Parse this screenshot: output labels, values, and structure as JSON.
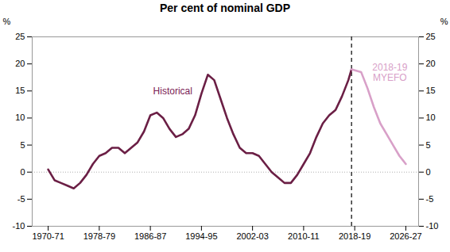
{
  "chart_data": {
    "type": "line",
    "title": "Per cent of nominal GDP",
    "ylabel": "%",
    "y2label": "%",
    "xlim": [
      1968.0,
      2028.5
    ],
    "xticks": [
      {
        "value": 1970.5,
        "label": "1970-71"
      },
      {
        "value": 1978.5,
        "label": "1978-79"
      },
      {
        "value": 1986.5,
        "label": "1986-87"
      },
      {
        "value": 1994.5,
        "label": "1994-95"
      },
      {
        "value": 2002.5,
        "label": "2002-03"
      },
      {
        "value": 2010.5,
        "label": "2010-11"
      },
      {
        "value": 2018.5,
        "label": "2018-19"
      },
      {
        "value": 2026.5,
        "label": "2026-27"
      }
    ],
    "ylim": [
      -10,
      25
    ],
    "yticks": [
      -10,
      -5,
      0,
      5,
      10,
      15,
      20,
      25
    ],
    "y2lim": [
      -10,
      25
    ],
    "y2ticks": [
      -10,
      -5,
      0,
      5,
      10,
      15,
      20,
      25
    ],
    "grid": false,
    "hlines": [
      0
    ],
    "vlines": [
      2018.0
    ],
    "series": [
      {
        "name": "Historical",
        "color": "#6B1F45",
        "label_x": 1990,
        "label_y": 15,
        "label_color": "#7B2255",
        "x": [
          1970.5,
          1971.5,
          1972.5,
          1973.5,
          1974.5,
          1975.5,
          1976.5,
          1977.5,
          1978.5,
          1979.5,
          1980.5,
          1981.5,
          1982.5,
          1983.5,
          1984.5,
          1985.5,
          1986.5,
          1987.5,
          1988.5,
          1989.5,
          1990.5,
          1991.5,
          1992.5,
          1993.5,
          1994.5,
          1995.5,
          1996.5,
          1997.5,
          1998.5,
          1999.5,
          2000.5,
          2001.5,
          2002.5,
          2003.5,
          2004.5,
          2005.5,
          2006.5,
          2007.5,
          2008.5,
          2009.5,
          2010.5,
          2011.5,
          2012.5,
          2013.5,
          2014.5,
          2015.5,
          2016.5,
          2017.5,
          2018.0
        ],
        "values": [
          0.5,
          -1.5,
          -2.0,
          -2.5,
          -3.0,
          -2.0,
          -0.5,
          1.5,
          3.0,
          3.5,
          4.5,
          4.5,
          3.5,
          4.5,
          5.5,
          7.5,
          10.5,
          11.0,
          10.0,
          8.0,
          6.5,
          7.0,
          8.0,
          10.5,
          14.5,
          18.0,
          17.0,
          13.5,
          10.0,
          7.0,
          4.5,
          3.5,
          3.5,
          3.0,
          1.5,
          0.0,
          -1.0,
          -2.0,
          -2.0,
          -0.5,
          1.5,
          3.5,
          6.5,
          9.0,
          10.5,
          11.5,
          14.0,
          17.0,
          19.0
        ]
      },
      {
        "name": "2018-19\nMYEFO",
        "color": "#D8A0C8",
        "label_x": 2024,
        "label_y": 18.5,
        "label_color": "#D8A0C8",
        "x": [
          2018.0,
          2019.5,
          2020.5,
          2021.5,
          2022.5,
          2023.5,
          2024.5,
          2025.5,
          2026.5
        ],
        "values": [
          19.0,
          18.5,
          15.5,
          12.0,
          9.0,
          7.0,
          5.0,
          3.0,
          1.5
        ]
      }
    ]
  }
}
